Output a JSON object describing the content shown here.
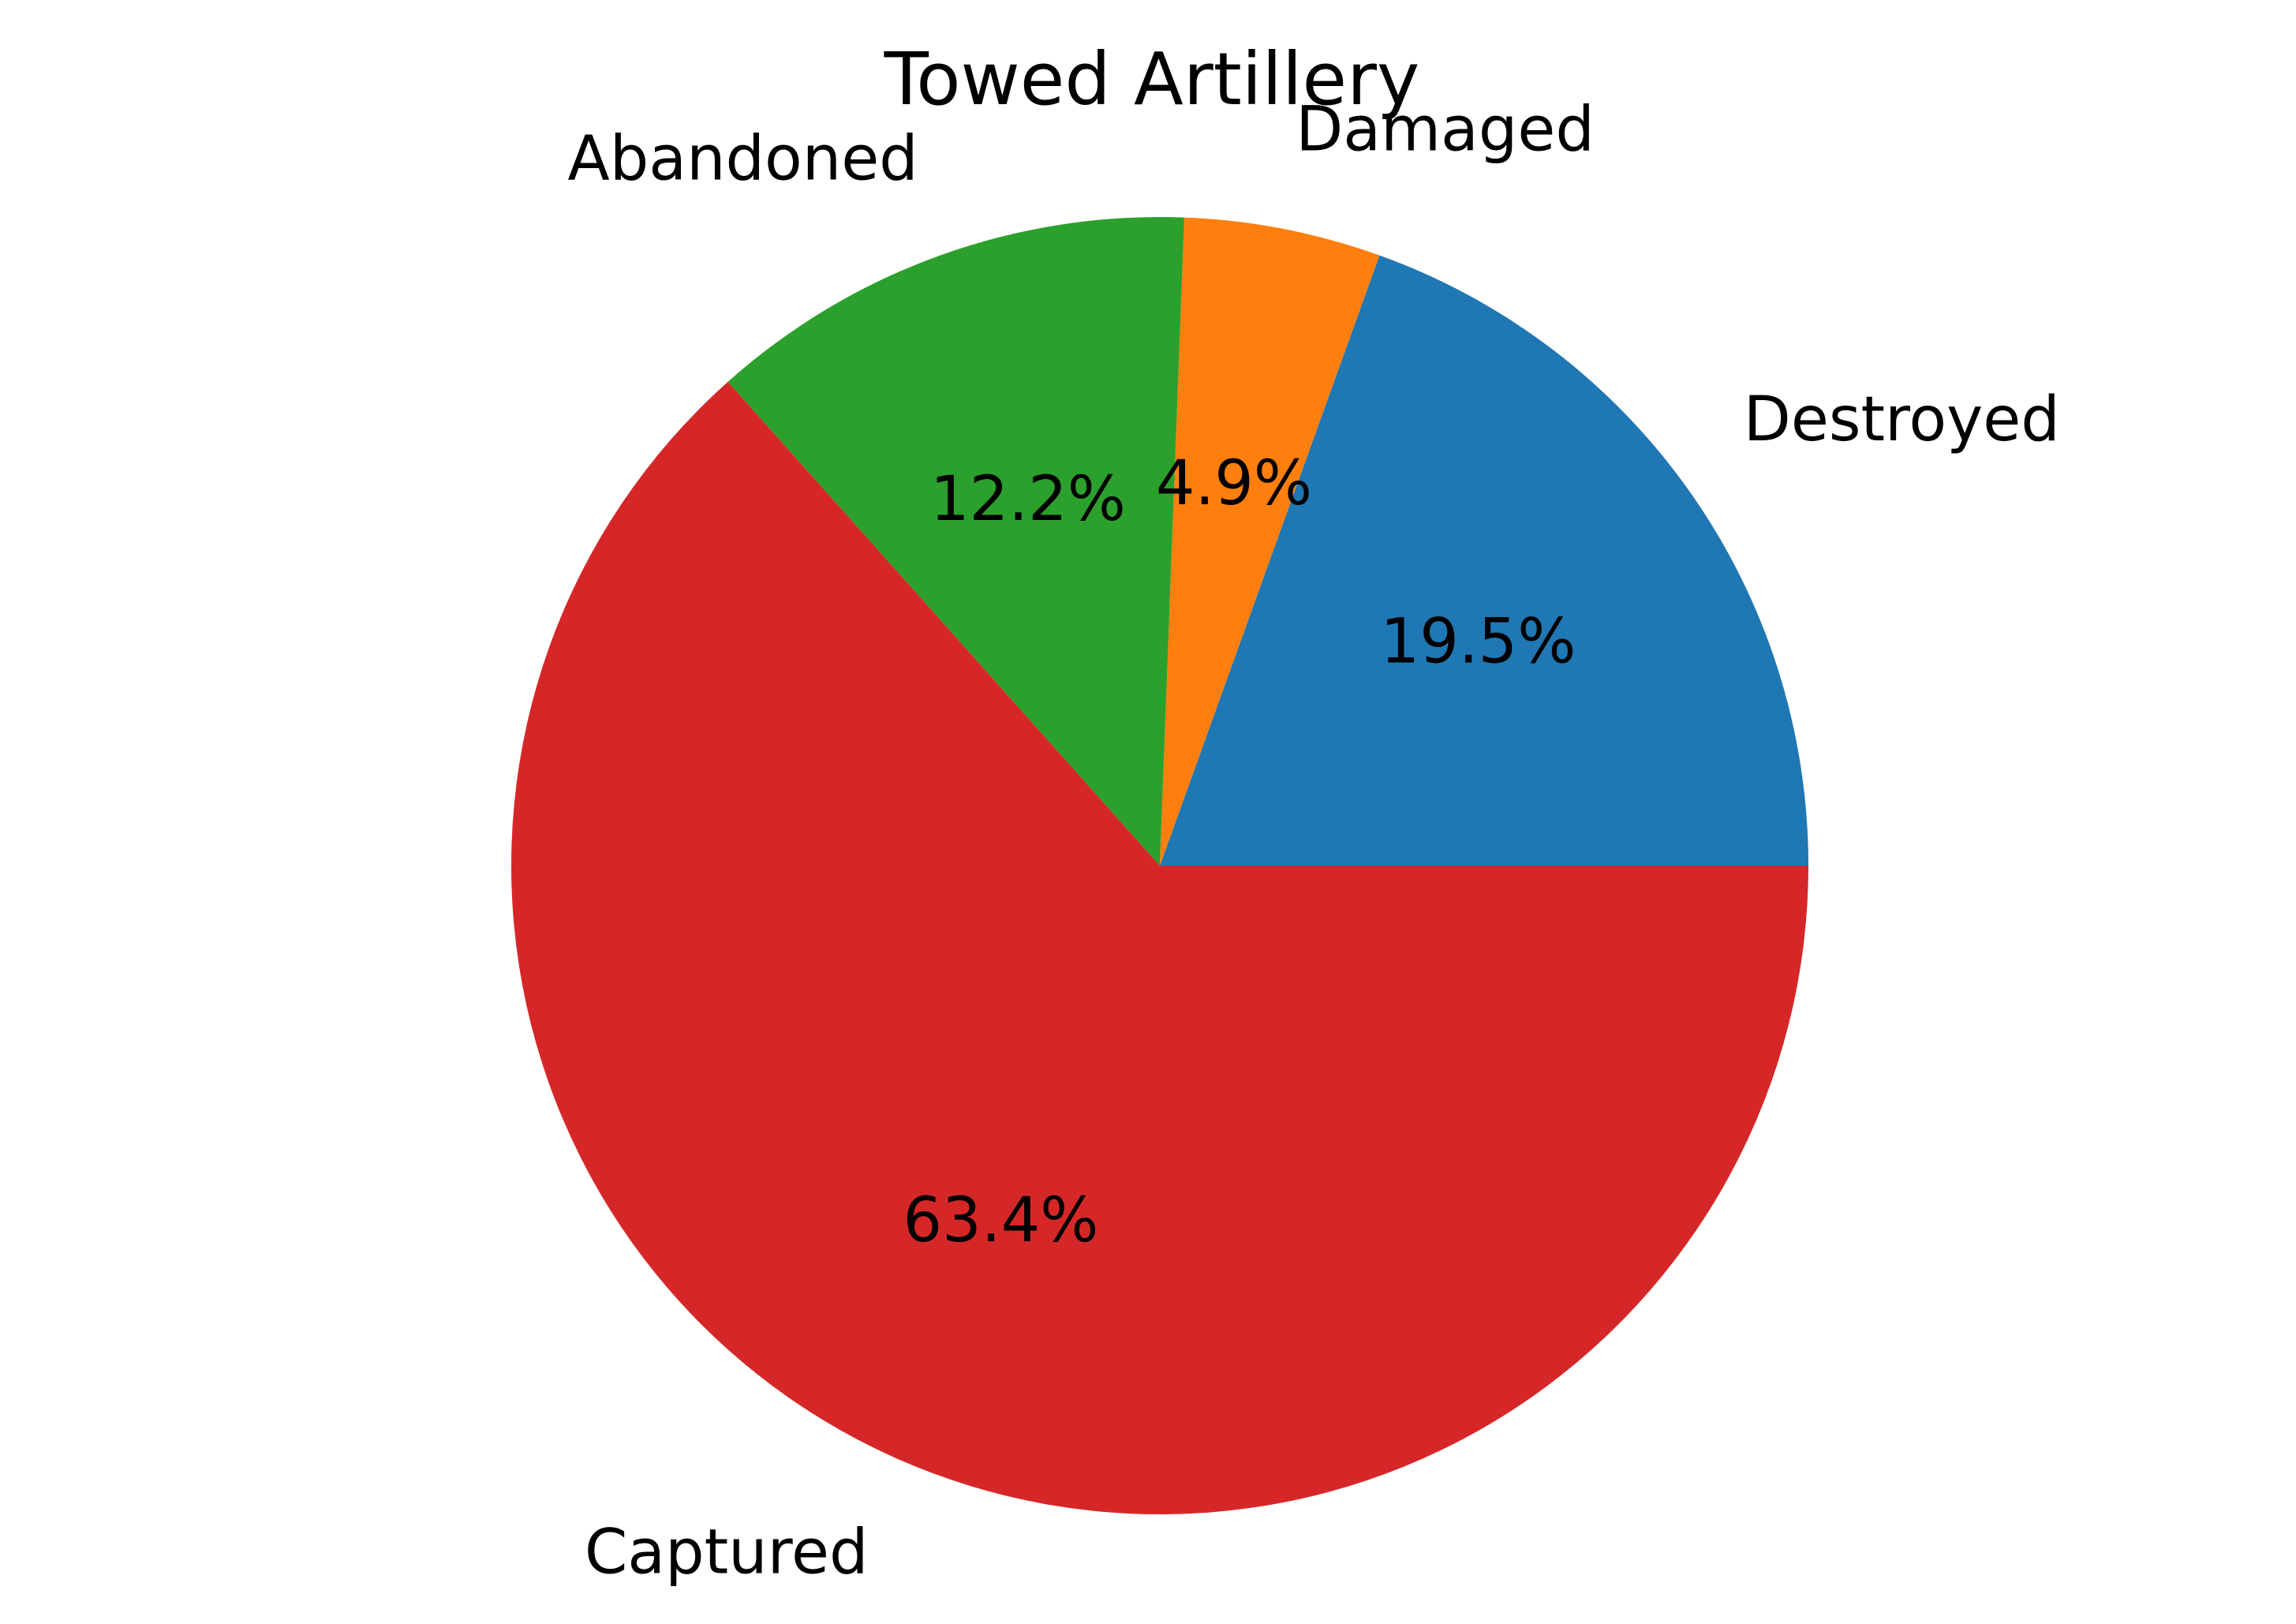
{
  "chart_data": {
    "type": "pie",
    "title": "Towed Artillery",
    "start_angle_deg": 0,
    "direction": "counterclockwise",
    "slices": [
      {
        "label": "Destroyed",
        "value": 19.5,
        "pct_label": "19.5%",
        "color": "#1f77b4"
      },
      {
        "label": "Damaged",
        "value": 4.9,
        "pct_label": "4.9%",
        "color": "#ff7f0e"
      },
      {
        "label": "Abandoned",
        "value": 12.2,
        "pct_label": "12.2%",
        "color": "#2ca02c"
      },
      {
        "label": "Captured",
        "value": 63.4,
        "pct_label": "63.4%",
        "color": "#d62728"
      }
    ]
  }
}
